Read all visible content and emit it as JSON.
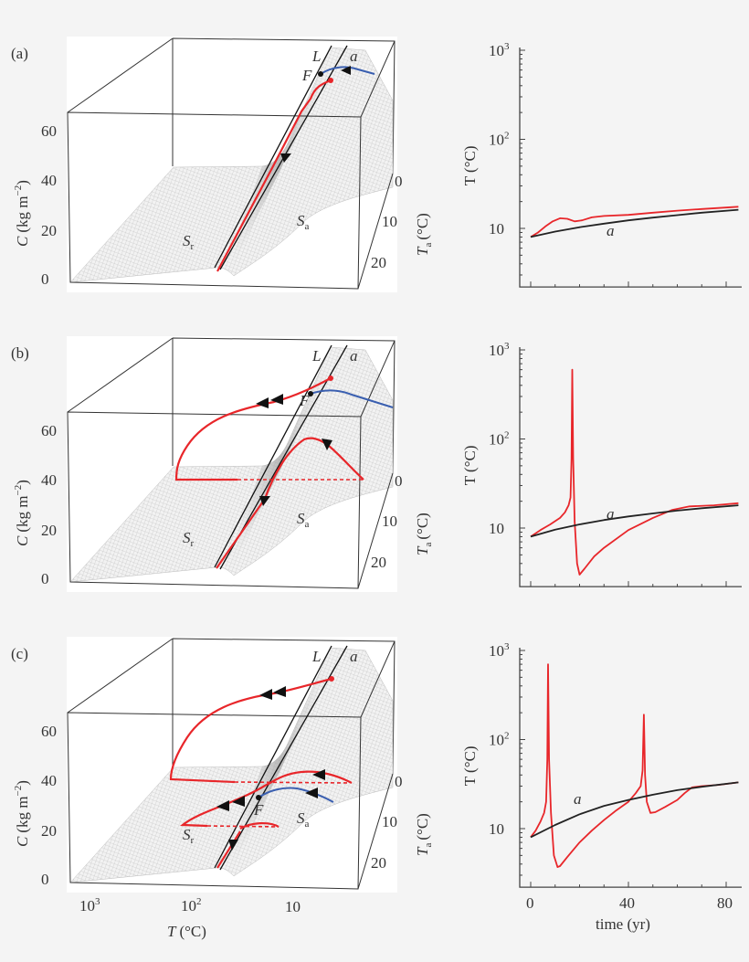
{
  "panels": [
    {
      "label": "(a)"
    },
    {
      "label": "(b)"
    },
    {
      "label": "(c)"
    }
  ],
  "surface": {
    "c_axis_label": "C",
    "c_axis_unit": "(kg m",
    "c_axis_unit_exp": "−2",
    "c_axis_unit_close": ")",
    "c_ticks": [
      "60",
      "40",
      "20",
      "0"
    ],
    "ta_axis_label": "T",
    "ta_axis_sub": "a",
    "ta_axis_unit": "(°C)",
    "ta_ticks": [
      "0",
      "10",
      "20"
    ],
    "t_axis_label": "T",
    "t_axis_unit": "(°C)",
    "t_ticks": [
      {
        "base": "10",
        "exp": "3"
      },
      {
        "base": "10",
        "exp": "2"
      },
      {
        "base": "10",
        "exp": ""
      }
    ],
    "label_L": "L",
    "label_a": "a",
    "label_F": "F",
    "label_Sr": "S",
    "label_Sr_sub": "r",
    "label_Sa": "S",
    "label_Sa_sub": "a"
  },
  "colors": {
    "trajectory": "#e8262a",
    "stable_branch": "#3a5fb0",
    "attractor": "#222222",
    "surface": "#c8c8c8"
  },
  "chart_data": [
    {
      "type": "line",
      "panel": "(a)",
      "ylabel": "T (°C)",
      "xlabel": "",
      "yscale": "log",
      "ylim": [
        2.2,
        1000
      ],
      "xlim": [
        -4,
        86
      ],
      "yticks": [
        {
          "base": "10",
          "exp": "3"
        },
        {
          "base": "10",
          "exp": "2"
        },
        {
          "base": "10",
          "exp": ""
        }
      ],
      "xticks": [],
      "series": [
        {
          "color": "#e8262a",
          "points": [
            [
              0,
              8
            ],
            [
              3,
              9
            ],
            [
              6,
              10.5
            ],
            [
              9,
              12
            ],
            [
              12,
              13
            ],
            [
              15,
              12.8
            ],
            [
              18,
              12
            ],
            [
              21,
              12.3
            ],
            [
              25,
              13.3
            ],
            [
              30,
              13.8
            ],
            [
              40,
              14.2
            ],
            [
              50,
              15
            ],
            [
              60,
              15.8
            ],
            [
              70,
              16.5
            ],
            [
              85,
              17.5
            ]
          ]
        },
        {
          "name": "a",
          "color": "#222222",
          "points": [
            [
              0,
              8
            ],
            [
              10,
              9.2
            ],
            [
              20,
              10.3
            ],
            [
              30,
              11.3
            ],
            [
              40,
              12.3
            ],
            [
              50,
              13.2
            ],
            [
              60,
              14.1
            ],
            [
              70,
              15
            ],
            [
              85,
              16.2
            ]
          ]
        }
      ]
    },
    {
      "type": "line",
      "panel": "(b)",
      "ylabel": "T (°C)",
      "xlabel": "",
      "yscale": "log",
      "ylim": [
        2.2,
        1000
      ],
      "xlim": [
        -4,
        86
      ],
      "yticks": [
        {
          "base": "10",
          "exp": "3"
        },
        {
          "base": "10",
          "exp": "2"
        },
        {
          "base": "10",
          "exp": ""
        }
      ],
      "xticks": [],
      "series": [
        {
          "color": "#e8262a",
          "points": [
            [
              0,
              8
            ],
            [
              4,
              9.5
            ],
            [
              8,
              11
            ],
            [
              12,
              13
            ],
            [
              14,
              15
            ],
            [
              15.5,
              18
            ],
            [
              16.3,
              22
            ],
            [
              16.7,
              60
            ],
            [
              17,
              600
            ],
            [
              17.4,
              60
            ],
            [
              18,
              12
            ],
            [
              19,
              4
            ],
            [
              20,
              3
            ],
            [
              22,
              3.5
            ],
            [
              26,
              4.8
            ],
            [
              30,
              6
            ],
            [
              40,
              9.5
            ],
            [
              50,
              13
            ],
            [
              58,
              16
            ],
            [
              65,
              17.5
            ],
            [
              75,
              18
            ],
            [
              85,
              19
            ]
          ]
        },
        {
          "name": "a",
          "color": "#222222",
          "points": [
            [
              0,
              8
            ],
            [
              10,
              9.6
            ],
            [
              20,
              11
            ],
            [
              30,
              12.3
            ],
            [
              40,
              13.5
            ],
            [
              50,
              14.6
            ],
            [
              60,
              15.7
            ],
            [
              70,
              16.7
            ],
            [
              85,
              18
            ]
          ]
        }
      ]
    },
    {
      "type": "line",
      "panel": "(c)",
      "ylabel": "T (°C)",
      "xlabel": "time (yr)",
      "yscale": "log",
      "ylim": [
        2.2,
        1000
      ],
      "xlim": [
        -4,
        86
      ],
      "yticks": [
        {
          "base": "10",
          "exp": "3"
        },
        {
          "base": "10",
          "exp": "2"
        },
        {
          "base": "10",
          "exp": ""
        }
      ],
      "xticks": [
        "0",
        "40",
        "80"
      ],
      "series": [
        {
          "color": "#e8262a",
          "points": [
            [
              0,
              8
            ],
            [
              2,
              9.5
            ],
            [
              4,
              12
            ],
            [
              5.5,
              15
            ],
            [
              6.3,
              20
            ],
            [
              6.8,
              60
            ],
            [
              7.1,
              700
            ],
            [
              7.5,
              60
            ],
            [
              8.3,
              15
            ],
            [
              9.5,
              5
            ],
            [
              11,
              3.7
            ],
            [
              12,
              3.8
            ],
            [
              15,
              4.8
            ],
            [
              20,
              7
            ],
            [
              25,
              9.5
            ],
            [
              30,
              12.5
            ],
            [
              35,
              16
            ],
            [
              40,
              20
            ],
            [
              43,
              25
            ],
            [
              45,
              30
            ],
            [
              45.8,
              45
            ],
            [
              46.3,
              190
            ],
            [
              46.8,
              40
            ],
            [
              47.5,
              20
            ],
            [
              49,
              15
            ],
            [
              51,
              15.3
            ],
            [
              55,
              17.5
            ],
            [
              60,
              21
            ],
            [
              63,
              25
            ],
            [
              66,
              29
            ],
            [
              70,
              30
            ],
            [
              77,
              31
            ],
            [
              85,
              33
            ]
          ]
        },
        {
          "name": "a",
          "color": "#222222",
          "points": [
            [
              0,
              8
            ],
            [
              10,
              11
            ],
            [
              20,
              14.5
            ],
            [
              30,
              18
            ],
            [
              40,
              21
            ],
            [
              50,
              24
            ],
            [
              60,
              27
            ],
            [
              70,
              29.5
            ],
            [
              85,
              33
            ]
          ]
        }
      ]
    }
  ]
}
